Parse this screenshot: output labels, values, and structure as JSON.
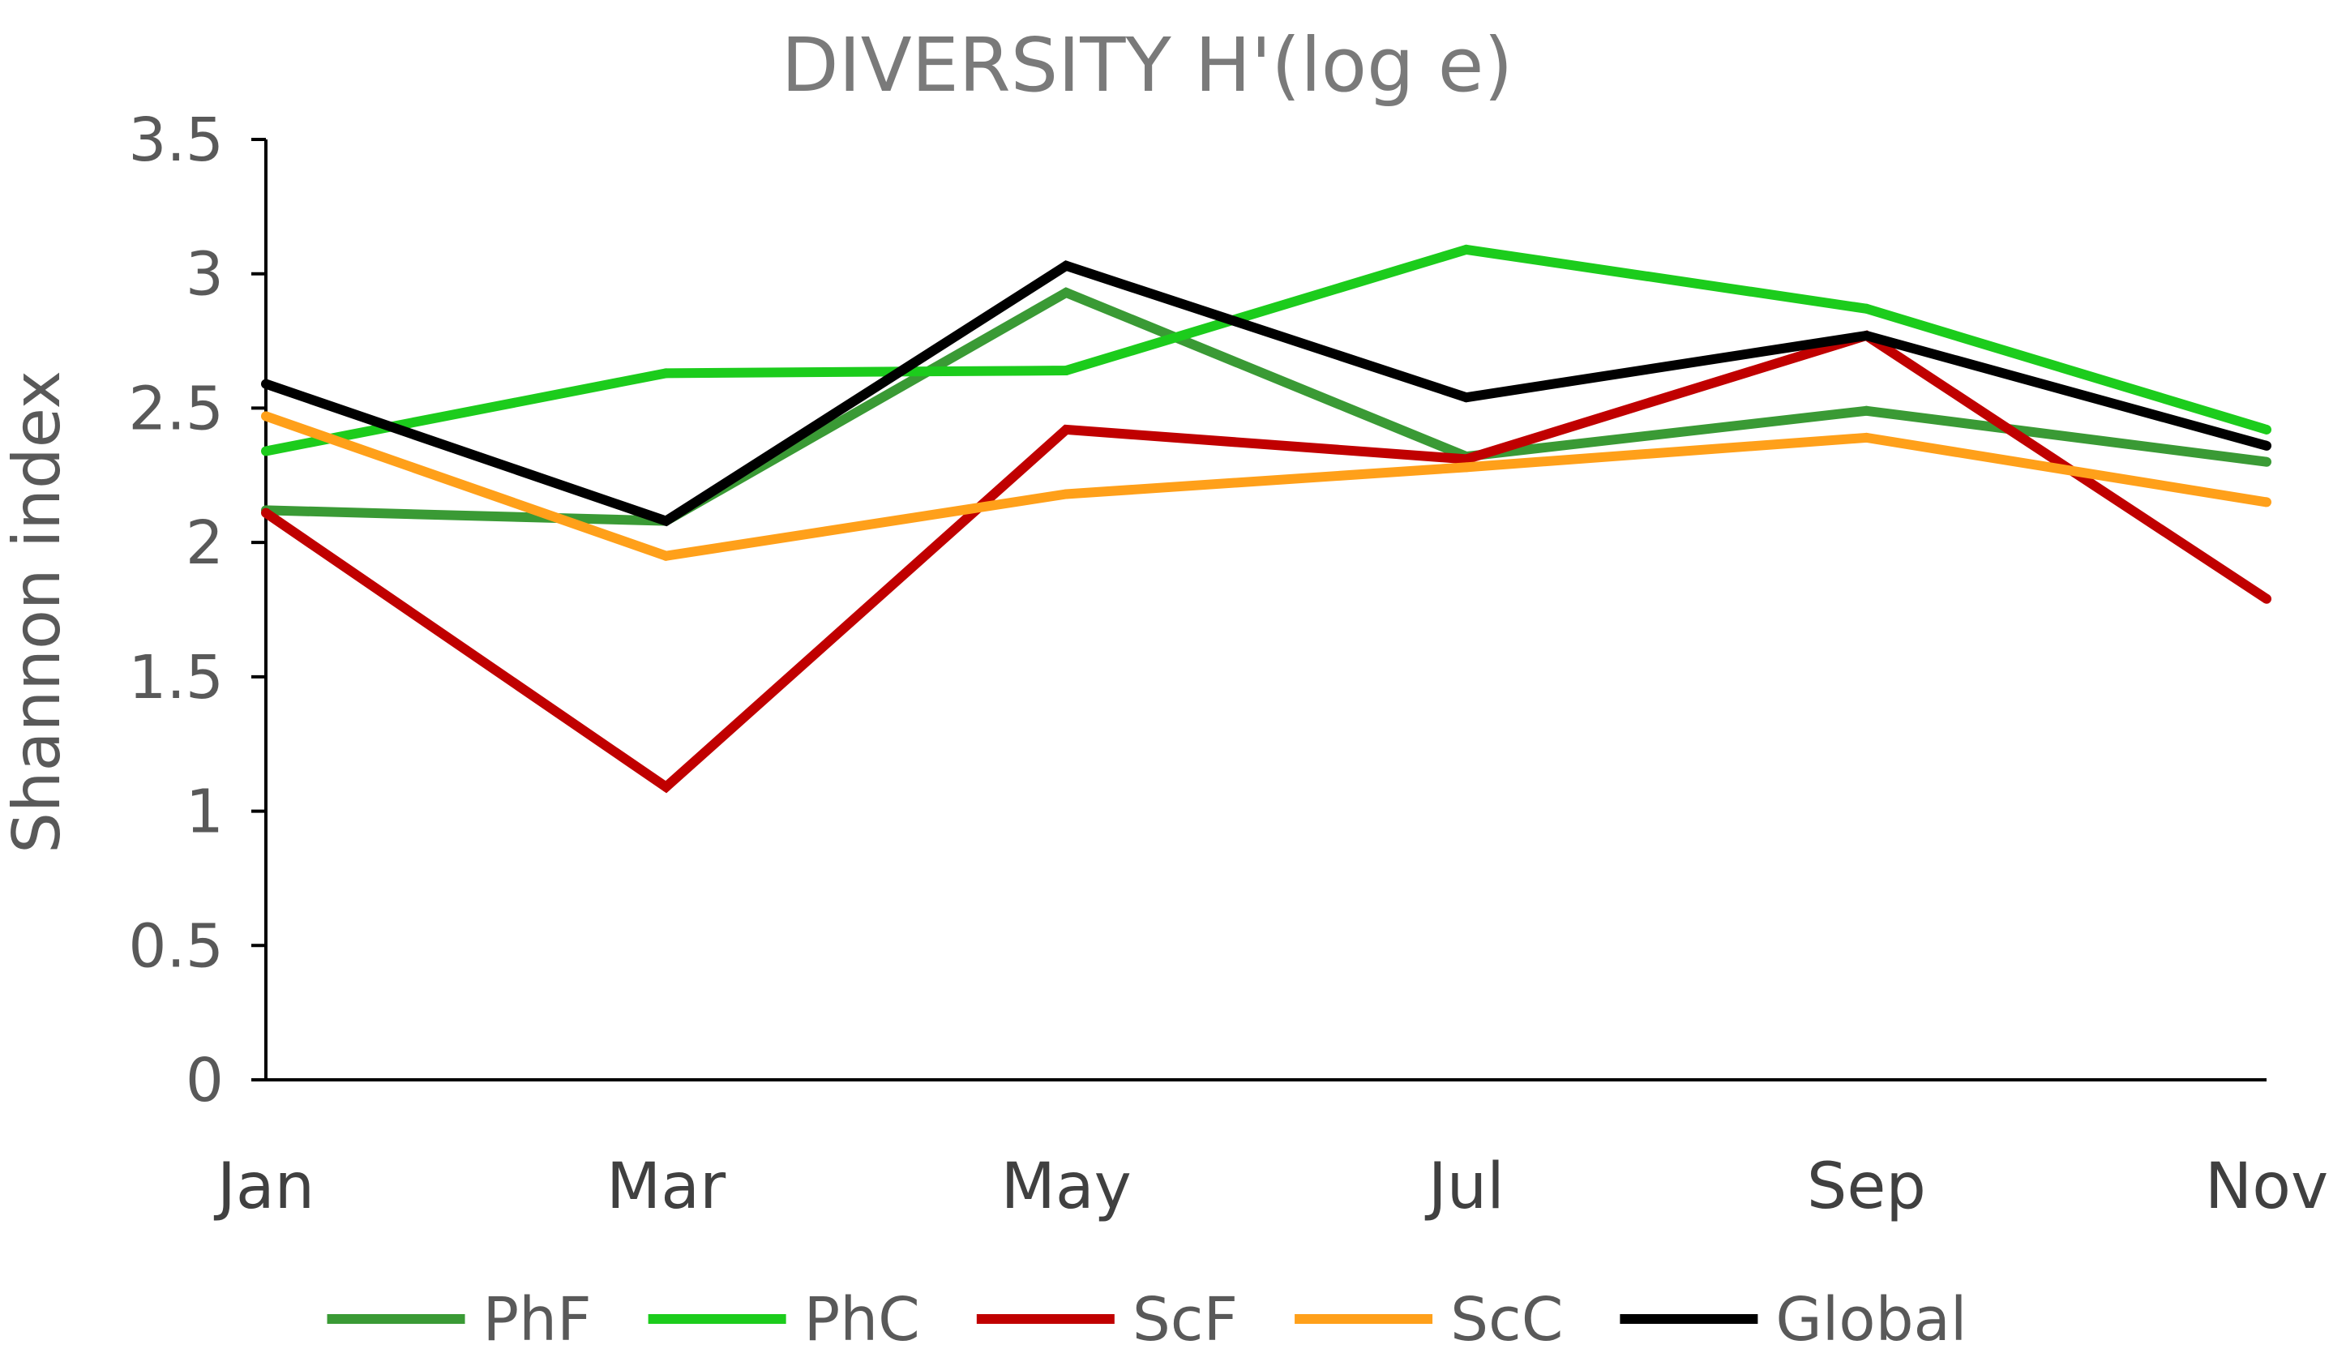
{
  "chart_data": {
    "type": "line",
    "title": "DIVERSITY H'(log e)",
    "xlabel": "",
    "ylabel": "Shannon index",
    "categories": [
      "Jan",
      "Mar",
      "May",
      "Jul",
      "Sep",
      "Nov"
    ],
    "ylim": [
      0,
      3.5
    ],
    "yticks": [
      "0",
      "0.5",
      "1",
      "1.5",
      "2",
      "2.5",
      "3",
      "3.5"
    ],
    "grid": false,
    "legend_position": "bottom",
    "series": [
      {
        "name": "PhF",
        "color": "#3a9a35",
        "values": [
          2.12,
          2.08,
          2.93,
          2.32,
          2.49,
          2.3
        ]
      },
      {
        "name": "PhC",
        "color": "#1ccc1c",
        "values": [
          2.34,
          2.63,
          2.64,
          3.09,
          2.87,
          2.42
        ]
      },
      {
        "name": "ScF",
        "color": "#c00000",
        "values": [
          2.11,
          1.09,
          2.42,
          2.31,
          2.77,
          1.79
        ]
      },
      {
        "name": "ScC",
        "color": "#ffa01a",
        "values": [
          2.47,
          1.95,
          2.18,
          2.28,
          2.39,
          2.15
        ]
      },
      {
        "name": "Global",
        "color": "#000000",
        "values": [
          2.59,
          2.08,
          3.03,
          2.54,
          2.77,
          2.36
        ]
      }
    ]
  }
}
